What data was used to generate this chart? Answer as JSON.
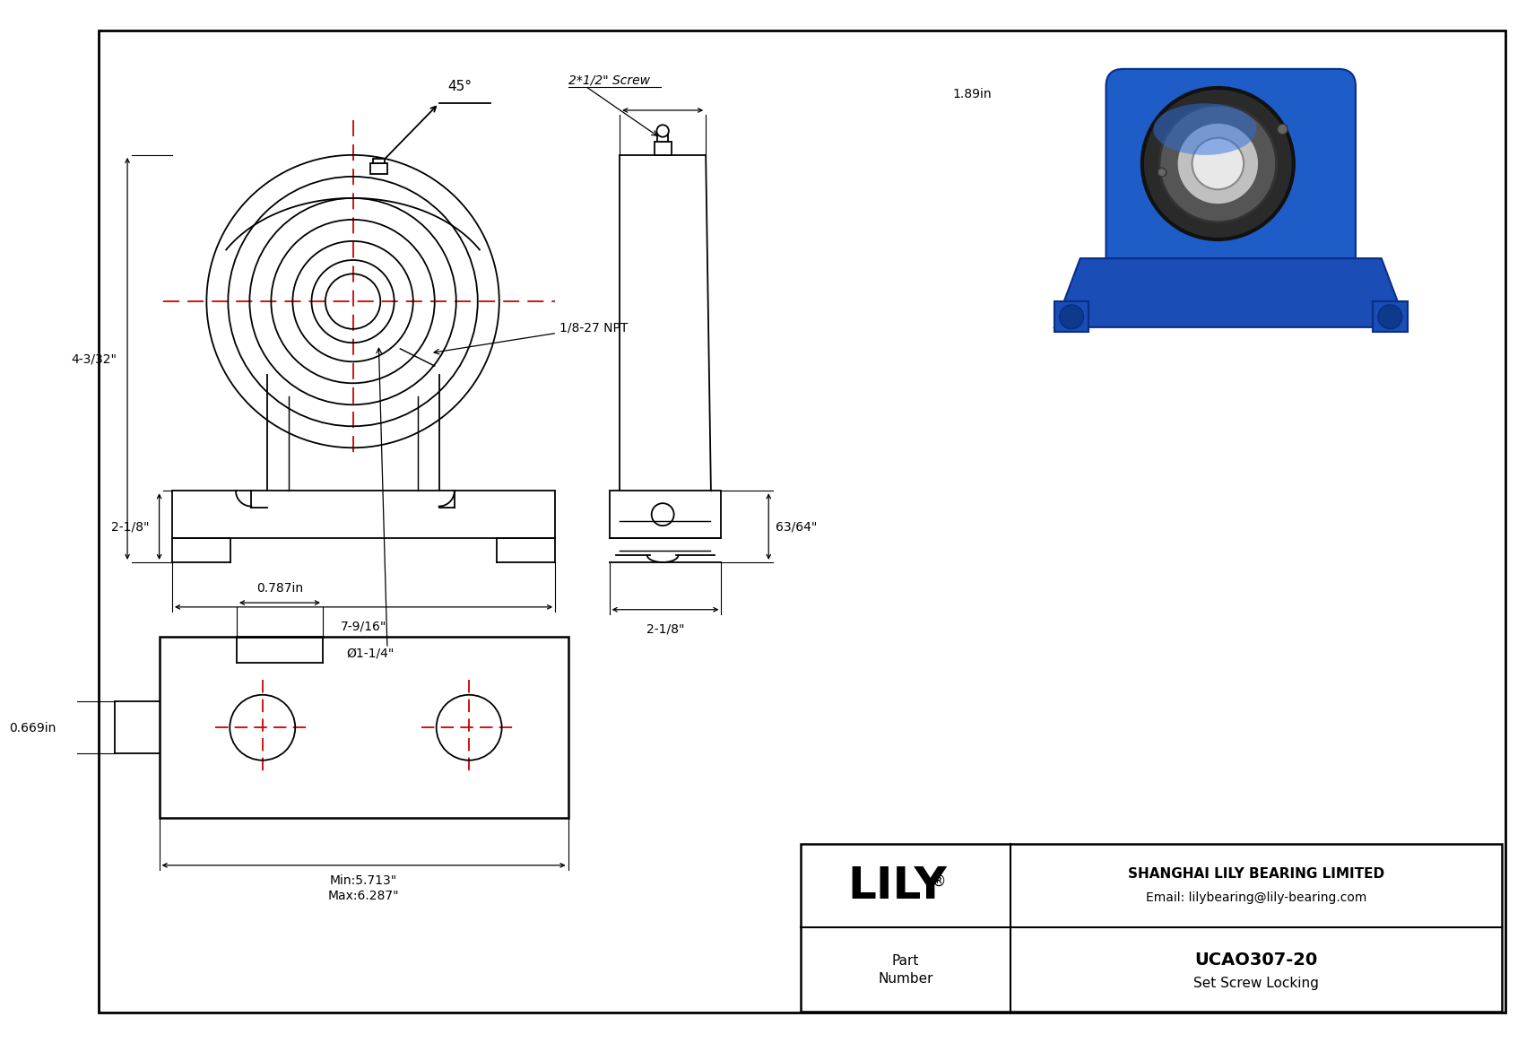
{
  "bg_color": "#ffffff",
  "line_color": "#000000",
  "red_color": "#cc0000",
  "dims": {
    "overall_height": "4-3/32\"",
    "base_height": "2-1/8\"",
    "total_width": "7-9/16\"",
    "bore_dia": "Ø1-1/4\"",
    "side_width": "2-1/8\"",
    "side_height": "63/64\"",
    "top_dim": "1.89in",
    "screw_label": "2*1/2\" Screw",
    "npt_label": "1/8-27 NPT",
    "angle_label": "45°",
    "slot_min": "Min:5.713\"",
    "slot_max": "Max:6.287\"",
    "slot_h1": "0.787in",
    "slot_h2": "0.669in"
  },
  "title_part": "UCAO307-20",
  "title_type": "Set Screw Locking",
  "company": "SHANGHAI LILY BEARING LIMITED",
  "email": "Email: lilybearing@lily-bearing.com",
  "brand": "LILY"
}
